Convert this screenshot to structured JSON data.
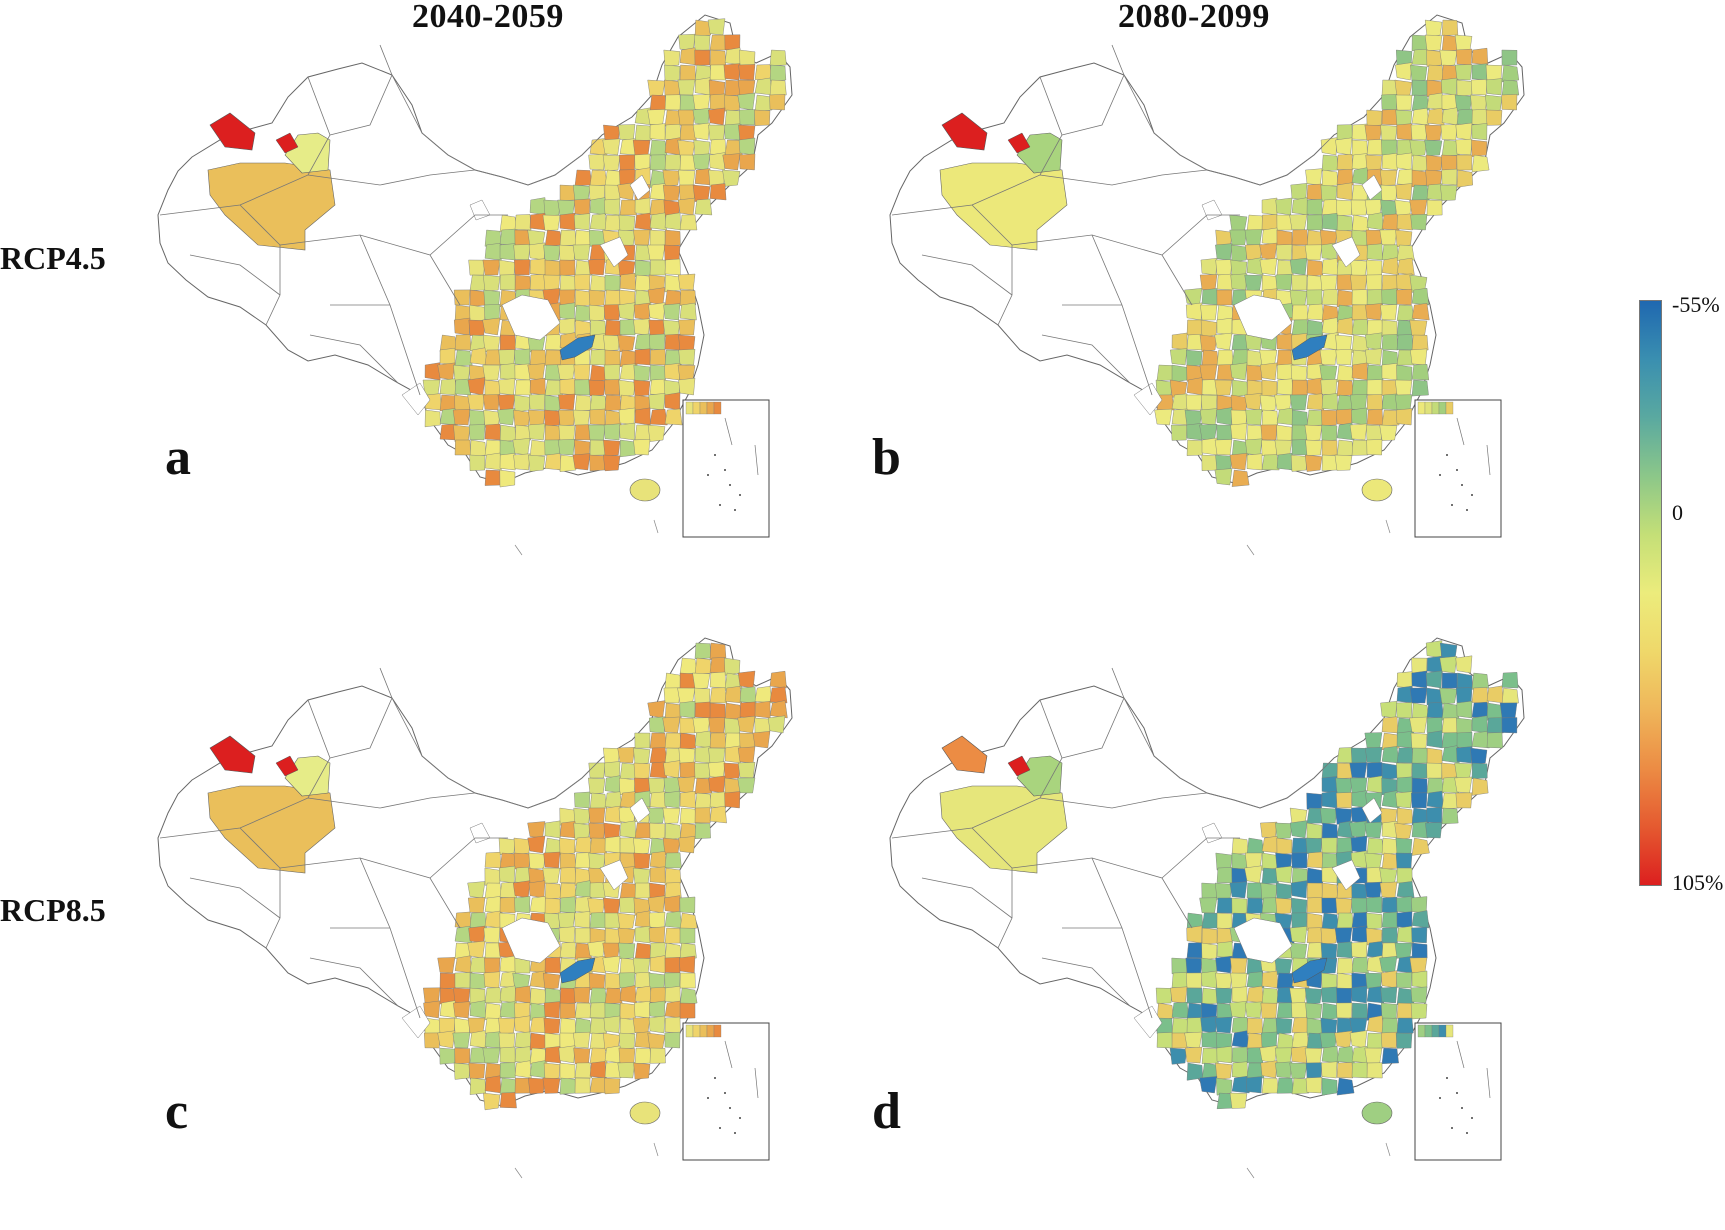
{
  "figure": {
    "columns": [
      "2040-2059",
      "2080-2099"
    ],
    "rows": [
      "RCP4.5",
      "RCP8.5"
    ],
    "panels": [
      {
        "letter": "a",
        "scenario": "RCP4.5",
        "period": "2040-2059",
        "palette": "warm"
      },
      {
        "letter": "b",
        "scenario": "RCP4.5",
        "period": "2080-2099",
        "palette": "mixed"
      },
      {
        "letter": "c",
        "scenario": "RCP8.5",
        "period": "2040-2059",
        "palette": "warm"
      },
      {
        "letter": "d",
        "scenario": "RCP8.5",
        "period": "2080-2099",
        "palette": "cool"
      }
    ]
  },
  "legend": {
    "top_label": "-55%",
    "mid_label": "0",
    "bottom_label": "105%",
    "colors": [
      "#1f68b0",
      "#3a8fb0",
      "#5aa9a0",
      "#8cc789",
      "#c4df77",
      "#ecec7c",
      "#efd86a",
      "#efb65a",
      "#ec8c44",
      "#e55a30",
      "#dc1f1f"
    ]
  },
  "palettes": {
    "warm": [
      "#e8e37a",
      "#efd46a",
      "#eabf5b",
      "#e9a64d",
      "#e88a3f",
      "#efe97c",
      "#d9e07a",
      "#b4d682"
    ],
    "mixed": [
      "#ece87a",
      "#dfe27a",
      "#c3db79",
      "#a3cf7e",
      "#e9cc64",
      "#e9ad52",
      "#ecea7e",
      "#8fc586"
    ],
    "cool": [
      "#9fcf82",
      "#7bbf8b",
      "#5aa79a",
      "#3d8ead",
      "#e6e67b",
      "#c7df78",
      "#e9cc65",
      "#2f79b4"
    ],
    "hotspot": "#dc1f1f",
    "blue_lake": "#2f7fbf"
  }
}
